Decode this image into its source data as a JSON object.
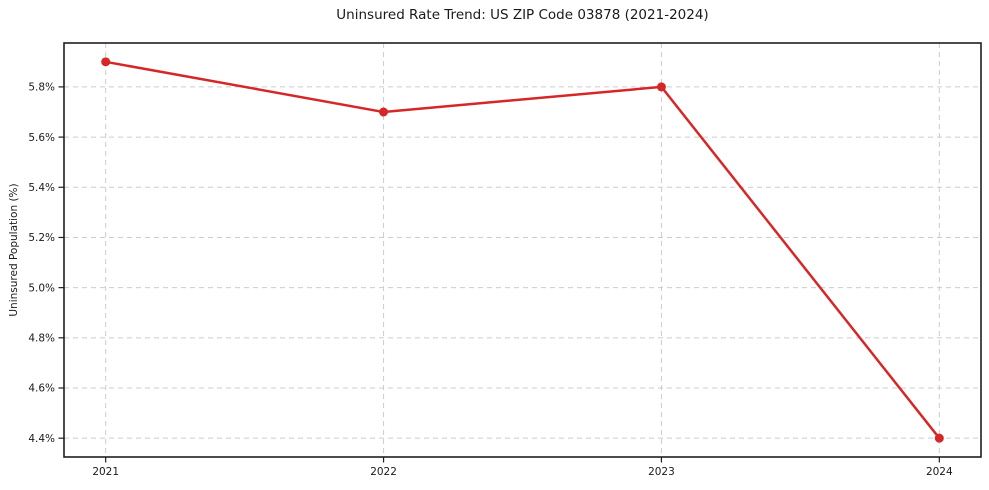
{
  "chart_data": {
    "type": "line",
    "title": "Uninsured Rate Trend: US ZIP Code 03878 (2021-2024)",
    "xlabel": "",
    "ylabel": "Uninsured Population (%)",
    "x": [
      2021,
      2022,
      2023,
      2024
    ],
    "x_tick_labels": [
      "2021",
      "2022",
      "2023",
      "2024"
    ],
    "values": [
      5.9,
      5.7,
      5.8,
      4.4
    ],
    "y_ticks": [
      4.4,
      4.6,
      4.8,
      5.0,
      5.2,
      5.4,
      5.6,
      5.8
    ],
    "y_tick_labels": [
      "4.4%",
      "4.6%",
      "4.8%",
      "5.0%",
      "5.2%",
      "5.4%",
      "5.6%",
      "5.8%"
    ],
    "xlim": [
      2020.85,
      2024.15
    ],
    "ylim": [
      4.325,
      5.975
    ],
    "grid": true,
    "grid_style": "dashed",
    "legend": "none",
    "colors": {
      "line": "#d62728",
      "marker": "#d62728",
      "grid": "#cccccc",
      "spine": "#1f1f1f",
      "tick": "#1f1f1f",
      "text": "#1a1a1a",
      "background": "#ffffff"
    }
  }
}
